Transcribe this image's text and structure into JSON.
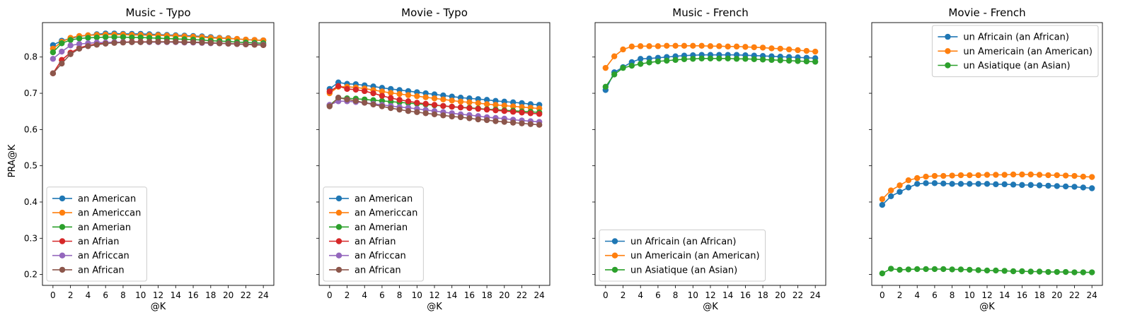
{
  "figure": {
    "shared_ylabel": "PRA@K"
  },
  "chart_data": [
    {
      "type": "line",
      "title": "Music - Typo",
      "xlabel": "@K",
      "ylabel": "PRA@K",
      "xlim": [
        -1.2,
        25.2
      ],
      "ylim": [
        0.17,
        0.895
      ],
      "xticks": [
        0,
        2,
        4,
        6,
        8,
        10,
        12,
        14,
        16,
        18,
        20,
        22,
        24
      ],
      "yticks": [
        0.2,
        0.3,
        0.4,
        0.5,
        0.6,
        0.7,
        0.8
      ],
      "legend": "lower-left",
      "x": [
        0,
        1,
        2,
        3,
        4,
        5,
        6,
        7,
        8,
        9,
        10,
        11,
        12,
        13,
        14,
        15,
        16,
        17,
        18,
        19,
        20,
        21,
        22,
        23,
        24
      ],
      "series": [
        {
          "name": "an American",
          "color": "#1f77b4",
          "values": [
            0.833,
            0.845,
            0.851,
            0.857,
            0.86,
            0.863,
            0.865,
            0.865,
            0.864,
            0.864,
            0.864,
            0.863,
            0.862,
            0.861,
            0.86,
            0.859,
            0.858,
            0.857,
            0.855,
            0.853,
            0.852,
            0.85,
            0.848,
            0.847,
            0.846
          ]
        },
        {
          "name": "an Americcan",
          "color": "#ff7f0e",
          "values": [
            0.823,
            0.842,
            0.853,
            0.858,
            0.86,
            0.861,
            0.862,
            0.862,
            0.862,
            0.861,
            0.861,
            0.86,
            0.86,
            0.859,
            0.858,
            0.857,
            0.856,
            0.855,
            0.853,
            0.852,
            0.851,
            0.85,
            0.848,
            0.847,
            0.846
          ]
        },
        {
          "name": "an Amerian",
          "color": "#2ca02c",
          "values": [
            0.813,
            0.838,
            0.847,
            0.851,
            0.853,
            0.854,
            0.855,
            0.855,
            0.855,
            0.854,
            0.854,
            0.853,
            0.852,
            0.851,
            0.85,
            0.849,
            0.848,
            0.847,
            0.845,
            0.844,
            0.843,
            0.841,
            0.84,
            0.839,
            0.838
          ]
        },
        {
          "name": "an Afrian",
          "color": "#d62728",
          "values": [
            0.755,
            0.792,
            0.812,
            0.825,
            0.832,
            0.836,
            0.839,
            0.84,
            0.841,
            0.842,
            0.842,
            0.842,
            0.842,
            0.842,
            0.842,
            0.841,
            0.841,
            0.84,
            0.839,
            0.838,
            0.837,
            0.836,
            0.835,
            0.834,
            0.833
          ]
        },
        {
          "name": "an Africcan",
          "color": "#9467bd",
          "values": [
            0.795,
            0.815,
            0.832,
            0.836,
            0.838,
            0.84,
            0.84,
            0.841,
            0.841,
            0.841,
            0.841,
            0.841,
            0.841,
            0.841,
            0.841,
            0.84,
            0.84,
            0.839,
            0.838,
            0.838,
            0.837,
            0.836,
            0.835,
            0.835,
            0.834
          ]
        },
        {
          "name": "an African",
          "color": "#8c564b",
          "values": [
            0.755,
            0.782,
            0.808,
            0.823,
            0.83,
            0.834,
            0.837,
            0.839,
            0.84,
            0.841,
            0.841,
            0.842,
            0.842,
            0.842,
            0.842,
            0.841,
            0.841,
            0.84,
            0.839,
            0.838,
            0.837,
            0.836,
            0.835,
            0.834,
            0.833
          ]
        }
      ]
    },
    {
      "type": "line",
      "title": "Movie - Typo",
      "xlabel": "@K",
      "ylabel": "",
      "xlim": [
        -1.2,
        25.2
      ],
      "ylim": [
        0.17,
        0.895
      ],
      "xticks": [
        0,
        2,
        4,
        6,
        8,
        10,
        12,
        14,
        16,
        18,
        20,
        22,
        24
      ],
      "yticks": [
        0.2,
        0.3,
        0.4,
        0.5,
        0.6,
        0.7,
        0.8
      ],
      "legend": "lower-left",
      "x": [
        0,
        1,
        2,
        3,
        4,
        5,
        6,
        7,
        8,
        9,
        10,
        11,
        12,
        13,
        14,
        15,
        16,
        17,
        18,
        19,
        20,
        21,
        22,
        23,
        24
      ],
      "series": [
        {
          "name": "an American",
          "color": "#1f77b4",
          "values": [
            0.712,
            0.73,
            0.726,
            0.725,
            0.722,
            0.719,
            0.715,
            0.712,
            0.709,
            0.706,
            0.703,
            0.7,
            0.697,
            0.694,
            0.691,
            0.688,
            0.686,
            0.684,
            0.682,
            0.679,
            0.677,
            0.675,
            0.673,
            0.67,
            0.668
          ]
        },
        {
          "name": "an Americcan",
          "color": "#ff7f0e",
          "values": [
            0.7,
            0.718,
            0.718,
            0.716,
            0.713,
            0.709,
            0.705,
            0.701,
            0.698,
            0.695,
            0.692,
            0.689,
            0.686,
            0.683,
            0.68,
            0.677,
            0.675,
            0.673,
            0.67,
            0.668,
            0.666,
            0.664,
            0.662,
            0.66,
            0.658
          ]
        },
        {
          "name": "an Amerian",
          "color": "#2ca02c",
          "values": [
            0.667,
            0.687,
            0.686,
            0.685,
            0.683,
            0.681,
            0.679,
            0.677,
            0.675,
            0.673,
            0.671,
            0.669,
            0.667,
            0.665,
            0.663,
            0.661,
            0.66,
            0.658,
            0.656,
            0.655,
            0.653,
            0.652,
            0.65,
            0.649,
            0.647
          ]
        },
        {
          "name": "an Afrian",
          "color": "#d62728",
          "values": [
            0.705,
            0.72,
            0.712,
            0.71,
            0.706,
            0.7,
            0.693,
            0.687,
            0.682,
            0.678,
            0.674,
            0.671,
            0.668,
            0.665,
            0.663,
            0.661,
            0.659,
            0.657,
            0.655,
            0.653,
            0.651,
            0.649,
            0.647,
            0.645,
            0.643
          ]
        },
        {
          "name": "an Africcan",
          "color": "#9467bd",
          "values": [
            0.668,
            0.678,
            0.678,
            0.676,
            0.674,
            0.671,
            0.668,
            0.665,
            0.662,
            0.66,
            0.657,
            0.654,
            0.651,
            0.648,
            0.645,
            0.642,
            0.64,
            0.637,
            0.634,
            0.632,
            0.63,
            0.627,
            0.625,
            0.623,
            0.621
          ]
        },
        {
          "name": "an African",
          "color": "#8c564b",
          "values": [
            0.664,
            0.688,
            0.683,
            0.679,
            0.674,
            0.669,
            0.664,
            0.659,
            0.655,
            0.651,
            0.648,
            0.645,
            0.642,
            0.639,
            0.636,
            0.634,
            0.631,
            0.628,
            0.626,
            0.623,
            0.621,
            0.619,
            0.617,
            0.615,
            0.613
          ]
        }
      ]
    },
    {
      "type": "line",
      "title": "Music - French",
      "xlabel": "@K",
      "ylabel": "",
      "xlim": [
        -1.2,
        25.2
      ],
      "ylim": [
        0.17,
        0.895
      ],
      "xticks": [
        0,
        2,
        4,
        6,
        8,
        10,
        12,
        14,
        16,
        18,
        20,
        22,
        24
      ],
      "yticks": [
        0.2,
        0.3,
        0.4,
        0.5,
        0.6,
        0.7,
        0.8
      ],
      "legend": "lower-left",
      "x": [
        0,
        1,
        2,
        3,
        4,
        5,
        6,
        7,
        8,
        9,
        10,
        11,
        12,
        13,
        14,
        15,
        16,
        17,
        18,
        19,
        20,
        21,
        22,
        23,
        24
      ],
      "series": [
        {
          "name": "un Africain (an African)",
          "color": "#1f77b4",
          "values": [
            0.709,
            0.758,
            0.772,
            0.786,
            0.795,
            0.796,
            0.798,
            0.8,
            0.802,
            0.804,
            0.805,
            0.806,
            0.806,
            0.806,
            0.806,
            0.806,
            0.805,
            0.804,
            0.803,
            0.802,
            0.801,
            0.8,
            0.799,
            0.798,
            0.797
          ]
        },
        {
          "name": "un Americain (an American)",
          "color": "#ff7f0e",
          "values": [
            0.77,
            0.802,
            0.821,
            0.829,
            0.83,
            0.83,
            0.83,
            0.831,
            0.831,
            0.831,
            0.831,
            0.831,
            0.83,
            0.83,
            0.829,
            0.829,
            0.828,
            0.827,
            0.826,
            0.824,
            0.823,
            0.821,
            0.819,
            0.817,
            0.815
          ]
        },
        {
          "name": "un Asiatique (an Asian)",
          "color": "#2ca02c",
          "values": [
            0.718,
            0.752,
            0.77,
            0.776,
            0.781,
            0.785,
            0.788,
            0.79,
            0.792,
            0.794,
            0.795,
            0.796,
            0.796,
            0.796,
            0.796,
            0.795,
            0.795,
            0.794,
            0.793,
            0.792,
            0.791,
            0.79,
            0.789,
            0.788,
            0.787
          ]
        }
      ]
    },
    {
      "type": "line",
      "title": "Movie - French",
      "xlabel": "@K",
      "ylabel": "",
      "xlim": [
        -1.2,
        25.2
      ],
      "ylim": [
        0.17,
        0.895
      ],
      "xticks": [
        0,
        2,
        4,
        6,
        8,
        10,
        12,
        14,
        16,
        18,
        20,
        22,
        24
      ],
      "yticks": [
        0.2,
        0.3,
        0.4,
        0.5,
        0.6,
        0.7,
        0.8
      ],
      "legend": "upper-right",
      "x": [
        0,
        1,
        2,
        3,
        4,
        5,
        6,
        7,
        8,
        9,
        10,
        11,
        12,
        13,
        14,
        15,
        16,
        17,
        18,
        19,
        20,
        21,
        22,
        23,
        24
      ],
      "series": [
        {
          "name": "un Africain (an African)",
          "color": "#1f77b4",
          "values": [
            0.392,
            0.416,
            0.428,
            0.44,
            0.45,
            0.452,
            0.452,
            0.451,
            0.45,
            0.45,
            0.45,
            0.45,
            0.45,
            0.449,
            0.449,
            0.448,
            0.447,
            0.447,
            0.446,
            0.445,
            0.444,
            0.443,
            0.442,
            0.44,
            0.438
          ]
        },
        {
          "name": "un Americain (an American)",
          "color": "#ff7f0e",
          "values": [
            0.408,
            0.432,
            0.446,
            0.46,
            0.466,
            0.47,
            0.472,
            0.472,
            0.473,
            0.474,
            0.474,
            0.474,
            0.475,
            0.475,
            0.475,
            0.476,
            0.476,
            0.476,
            0.475,
            0.474,
            0.474,
            0.473,
            0.472,
            0.47,
            0.469
          ]
        },
        {
          "name": "un Asiatique (an Asian)",
          "color": "#2ca02c",
          "values": [
            0.203,
            0.216,
            0.213,
            0.214,
            0.215,
            0.215,
            0.215,
            0.215,
            0.214,
            0.214,
            0.213,
            0.212,
            0.211,
            0.211,
            0.21,
            0.209,
            0.209,
            0.208,
            0.208,
            0.207,
            0.207,
            0.207,
            0.206,
            0.206,
            0.206
          ]
        }
      ]
    }
  ]
}
